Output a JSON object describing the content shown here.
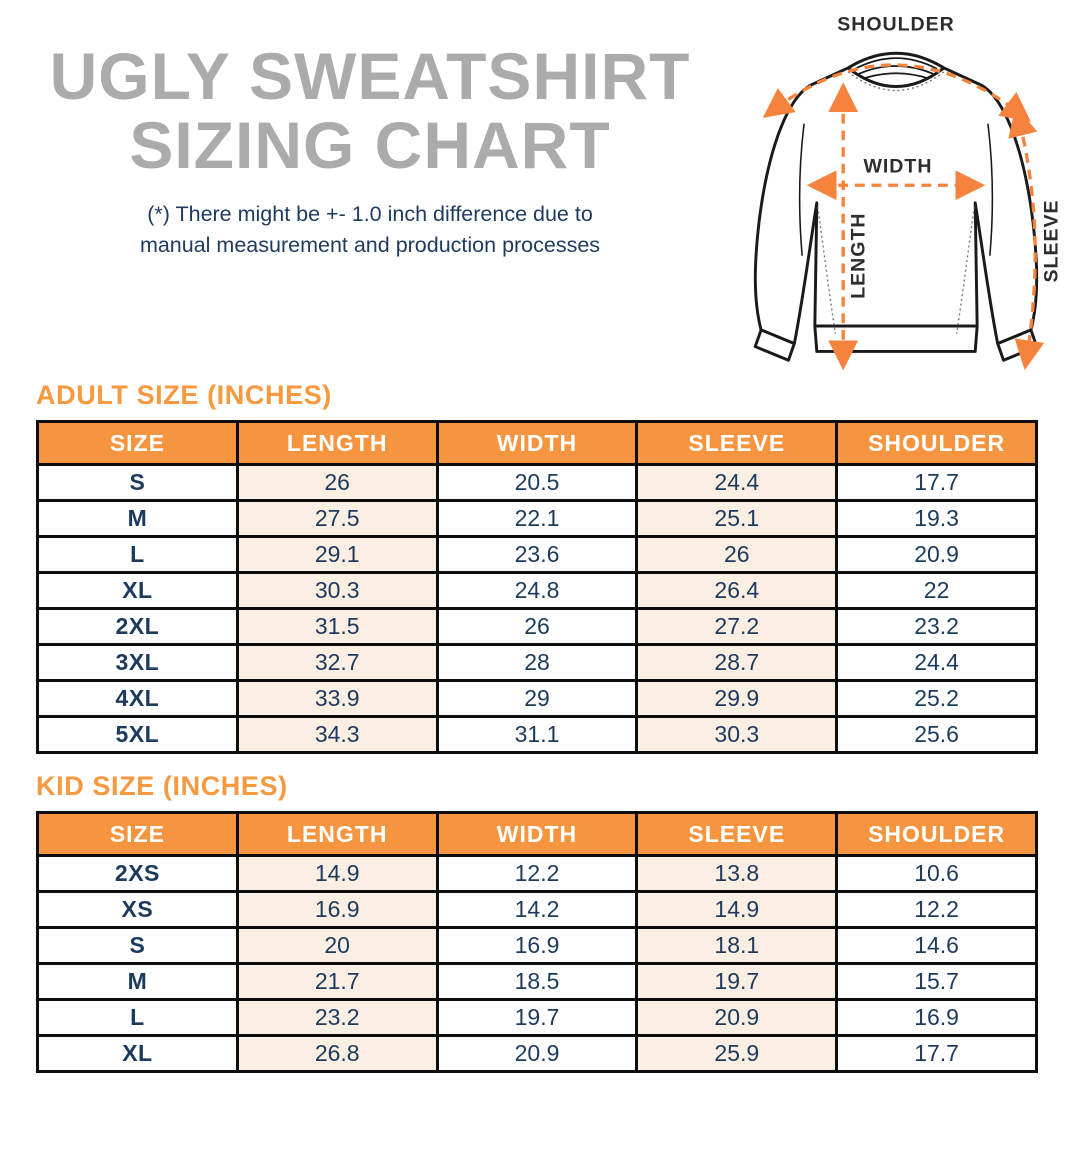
{
  "page": {
    "title_line1": "UGLY SWEATSHIRT",
    "title_line2": "SIZING CHART",
    "disclaimer_line1": "(*) There might be +- 1.0 inch difference due to",
    "disclaimer_line2": "manual measurement and production processes"
  },
  "diagram": {
    "labels": {
      "shoulder": "SHOULDER",
      "width": "WIDTH",
      "length": "LENGTH",
      "sleeve": "SLEEVE"
    }
  },
  "colors": {
    "accent_orange": "#F6953F",
    "arrow_orange": "#F5833D",
    "row_peach": "#FBEEE2",
    "text_navy": "#1C3A5E",
    "title_gray": "#ABABAB",
    "table_border": "#0D0D0D"
  },
  "adult_table": {
    "heading": "ADULT SIZE (INCHES)",
    "columns": [
      "SIZE",
      "LENGTH",
      "WIDTH",
      "SLEEVE",
      "SHOULDER"
    ],
    "rows": [
      [
        "S",
        "26",
        "20.5",
        "24.4",
        "17.7"
      ],
      [
        "M",
        "27.5",
        "22.1",
        "25.1",
        "19.3"
      ],
      [
        "L",
        "29.1",
        "23.6",
        "26",
        "20.9"
      ],
      [
        "XL",
        "30.3",
        "24.8",
        "26.4",
        "22"
      ],
      [
        "2XL",
        "31.5",
        "26",
        "27.2",
        "23.2"
      ],
      [
        "3XL",
        "32.7",
        "28",
        "28.7",
        "24.4"
      ],
      [
        "4XL",
        "33.9",
        "29",
        "29.9",
        "25.2"
      ],
      [
        "5XL",
        "34.3",
        "31.1",
        "30.3",
        "25.6"
      ]
    ]
  },
  "kid_table": {
    "heading": "KID SIZE (INCHES)",
    "columns": [
      "SIZE",
      "LENGTH",
      "WIDTH",
      "SLEEVE",
      "SHOULDER"
    ],
    "rows": [
      [
        "2XS",
        "14.9",
        "12.2",
        "13.8",
        "10.6"
      ],
      [
        "XS",
        "16.9",
        "14.2",
        "14.9",
        "12.2"
      ],
      [
        "S",
        "20",
        "16.9",
        "18.1",
        "14.6"
      ],
      [
        "M",
        "21.7",
        "18.5",
        "19.7",
        "15.7"
      ],
      [
        "L",
        "23.2",
        "19.7",
        "20.9",
        "16.9"
      ],
      [
        "XL",
        "26.8",
        "20.9",
        "25.9",
        "17.7"
      ]
    ]
  }
}
